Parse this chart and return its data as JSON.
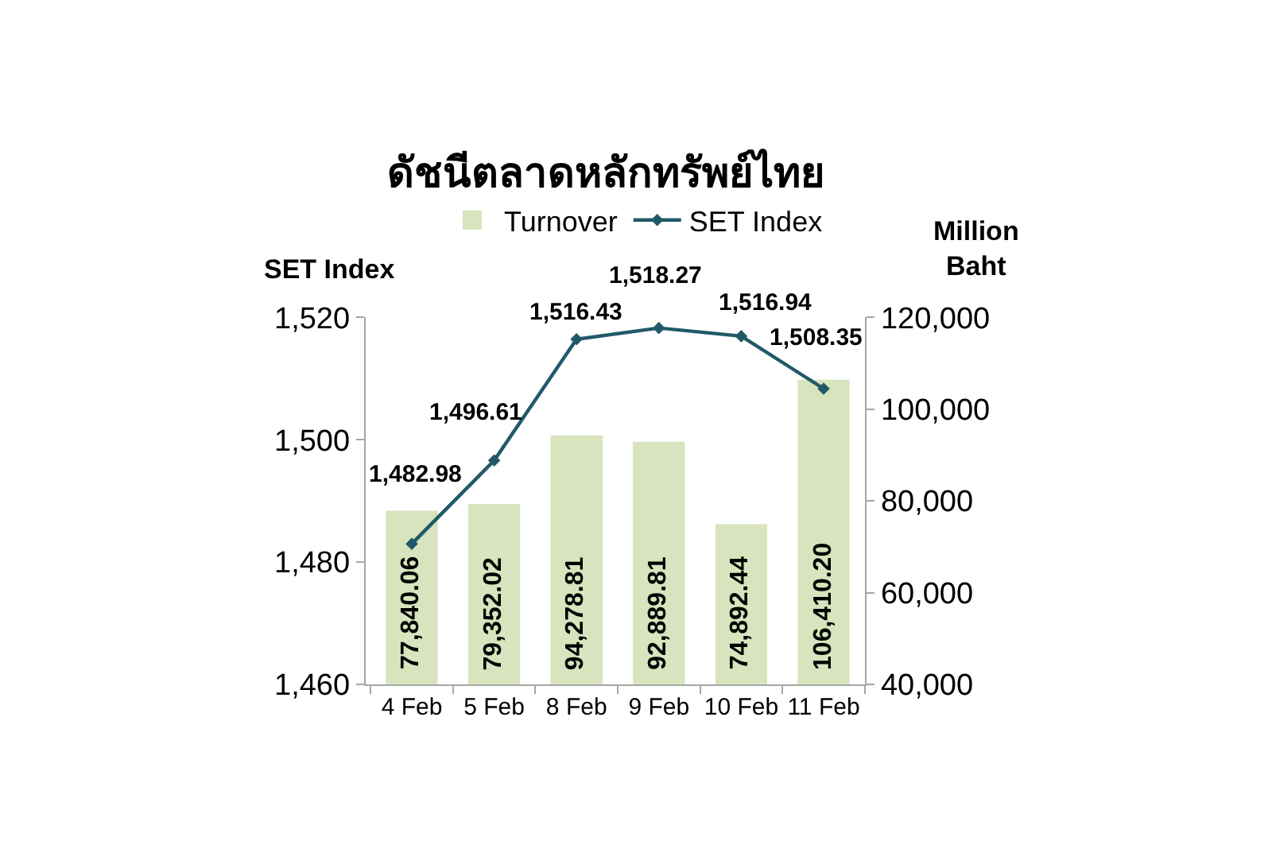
{
  "chart_data": {
    "type": "bar",
    "title": "ดัชนีตลาดหลักทรัพย์ไทย",
    "categories": [
      "4 Feb",
      "5 Feb",
      "8 Feb",
      "9 Feb",
      "10 Feb",
      "11 Feb"
    ],
    "series": [
      {
        "name": "Turnover",
        "axis": "y2",
        "color": "#d7e4bd",
        "values": [
          77840.06,
          79352.02,
          94278.81,
          92889.81,
          74892.44,
          106410.2
        ],
        "value_labels": [
          "77,840.06",
          "79,352.02",
          "94,278.81",
          "92,889.81",
          "74,892.44",
          "106,410.20"
        ]
      },
      {
        "name": "SET Index",
        "type": "line",
        "axis": "y",
        "color": "#215968",
        "values": [
          1482.98,
          1496.61,
          1516.43,
          1518.27,
          1516.94,
          1508.35
        ],
        "value_labels": [
          "1,482.98",
          "1,496.61",
          "1,516.43",
          "1,518.27",
          "1,516.94",
          "1,508.35"
        ]
      }
    ],
    "ylabel": "SET Index",
    "y2label": "Million Baht",
    "ylim": [
      1460,
      1520
    ],
    "yticks": [
      {
        "value": 1460,
        "label": "1,460"
      },
      {
        "value": 1480,
        "label": "1,480"
      },
      {
        "value": 1500,
        "label": "1,500"
      },
      {
        "value": 1520,
        "label": "1,520"
      }
    ],
    "y2lim": [
      40000,
      120000
    ],
    "y2ticks": [
      {
        "value": 40000,
        "label": "40,000"
      },
      {
        "value": 60000,
        "label": "60,000"
      },
      {
        "value": 80000,
        "label": "80,000"
      },
      {
        "value": 100000,
        "label": "100,000"
      },
      {
        "value": 120000,
        "label": "120,000"
      }
    ],
    "legend": "top",
    "marker": "diamond",
    "line_style": "solid"
  }
}
